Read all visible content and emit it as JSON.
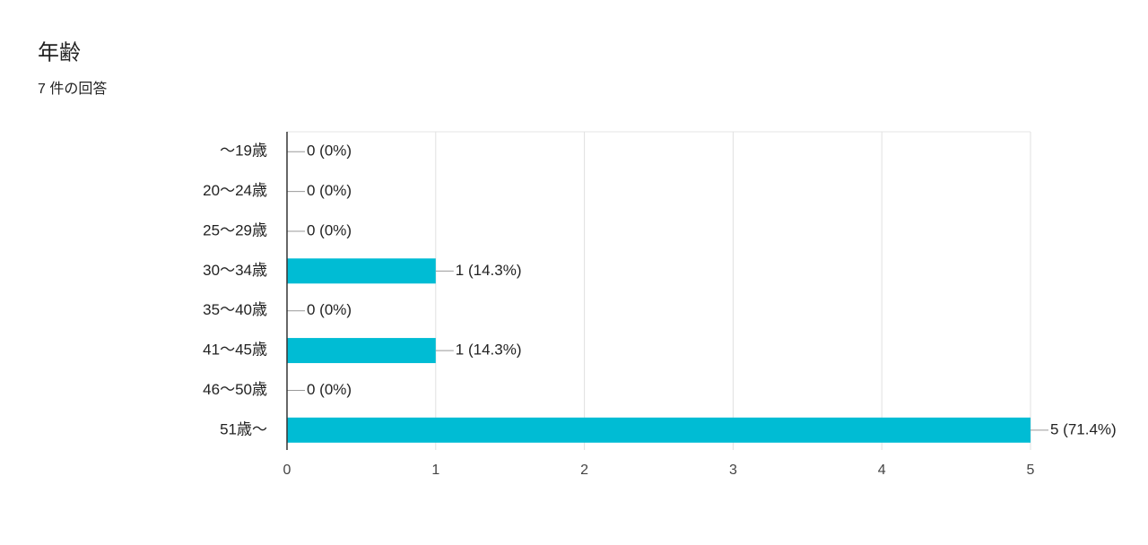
{
  "chart_data": {
    "type": "bar",
    "orientation": "horizontal",
    "title": "年齢",
    "subtitle": "7 件の回答",
    "categories": [
      "〜19歳",
      "20〜24歳",
      "25〜29歳",
      "30〜34歳",
      "35〜40歳",
      "41〜45歳",
      "46〜50歳",
      "51歳〜"
    ],
    "values": [
      0,
      0,
      0,
      1,
      0,
      1,
      0,
      5
    ],
    "value_labels": [
      "0 (0%)",
      "0 (0%)",
      "0 (0%)",
      "1 (14.3%)",
      "0 (0%)",
      "1 (14.3%)",
      "0 (0%)",
      "5 (71.4%)"
    ],
    "color": "#00bcd4",
    "xlim": [
      0,
      5
    ],
    "xticks": [
      0,
      1,
      2,
      3,
      4,
      5
    ],
    "grid": true
  }
}
